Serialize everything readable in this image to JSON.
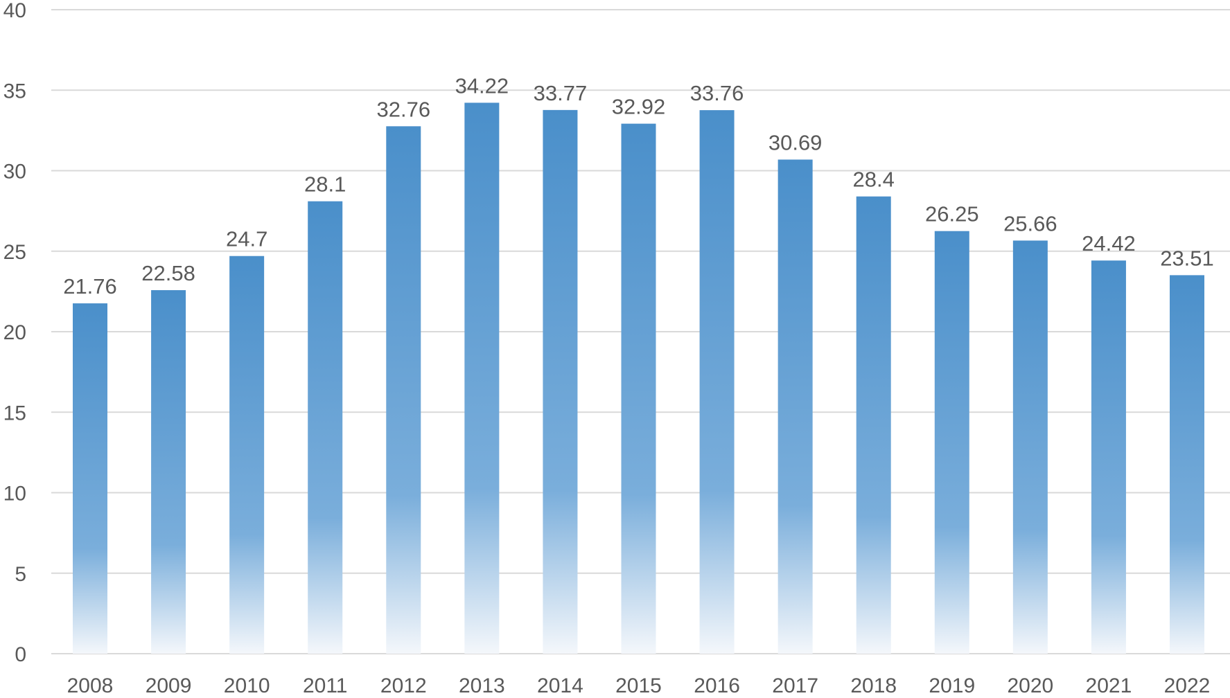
{
  "chart_data": {
    "type": "bar",
    "title": "",
    "xlabel": "",
    "ylabel": "",
    "categories": [
      "2008",
      "2009",
      "2010",
      "2011",
      "2012",
      "2013",
      "2014",
      "2015",
      "2016",
      "2017",
      "2018",
      "2019",
      "2020",
      "2021",
      "2022"
    ],
    "values": [
      21.76,
      22.58,
      24.7,
      28.1,
      32.76,
      34.22,
      33.77,
      32.92,
      33.76,
      30.69,
      28.4,
      26.25,
      25.66,
      24.42,
      23.51
    ],
    "data_labels": [
      "21.76",
      "22.58",
      "24.7",
      "28.1",
      "32.76",
      "34.22",
      "33.77",
      "32.92",
      "33.76",
      "30.69",
      "28.4",
      "26.25",
      "25.66",
      "24.42",
      "23.51"
    ],
    "ylim": [
      0,
      40
    ],
    "yticks": [
      0,
      5,
      10,
      15,
      20,
      25,
      30,
      35,
      40
    ],
    "grid": true,
    "legend": "none",
    "colors": {
      "bar_top": "#4a8fca",
      "bar_mid": "#7aaedb",
      "bar_bottom": "#f4f7fb",
      "grid": "#d9d9d9",
      "text": "#595959"
    }
  }
}
